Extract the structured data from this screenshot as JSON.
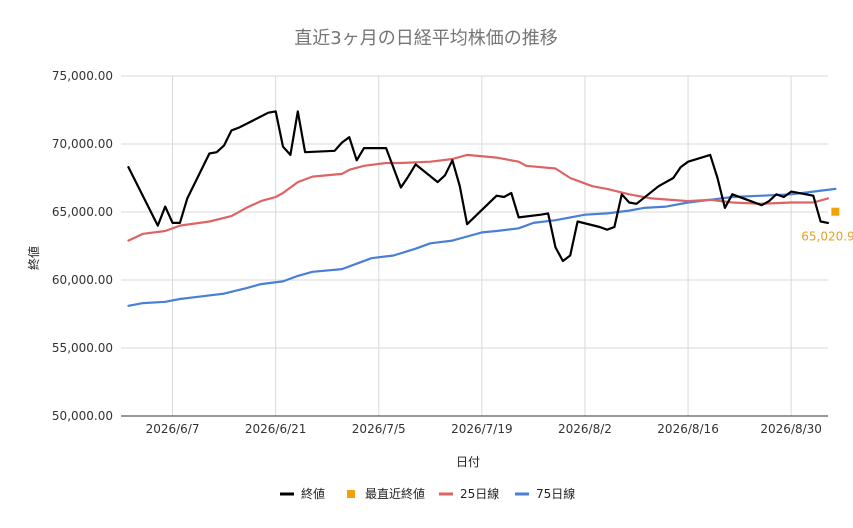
{
  "chart_data": {
    "type": "line",
    "title": "直近3ヶ月の日経平均株価の推移",
    "xlabel": "日付",
    "ylabel": "終値",
    "ylim": [
      50000,
      75000
    ],
    "y_ticks": [
      50000,
      55000,
      60000,
      65000,
      70000,
      75000
    ],
    "y_tick_labels": [
      "50,000.00",
      "55,000.00",
      "60,000.00",
      "65,000.00",
      "70,000.00",
      "75,000.00"
    ],
    "x_range": [
      "2026-05-31",
      "2026-09-04"
    ],
    "x_ticks": [
      "2026-06-07",
      "2026-06-21",
      "2026-07-05",
      "2026-07-19",
      "2026-08-02",
      "2026-08-16",
      "2026-08-30"
    ],
    "x_tick_labels": [
      "2026/6/7",
      "2026/6/21",
      "2026/7/5",
      "2026/7/19",
      "2026/8/2",
      "2026/8/16",
      "2026/8/30"
    ],
    "grid": true,
    "legend_position": "bottom",
    "latest_label": "65,020.94",
    "series": [
      {
        "name": "終値",
        "color": "#000000",
        "kind": "line",
        "points": [
          [
            "2026-06-01",
            68300
          ],
          [
            "2026-06-05",
            64000
          ],
          [
            "2026-06-06",
            65400
          ],
          [
            "2026-06-07",
            64200
          ],
          [
            "2026-06-08",
            64200
          ],
          [
            "2026-06-09",
            66000
          ],
          [
            "2026-06-12",
            69300
          ],
          [
            "2026-06-13",
            69400
          ],
          [
            "2026-06-14",
            69900
          ],
          [
            "2026-06-15",
            71000
          ],
          [
            "2026-06-16",
            71200
          ],
          [
            "2026-06-20",
            72300
          ],
          [
            "2026-06-21",
            72400
          ],
          [
            "2026-06-22",
            69800
          ],
          [
            "2026-06-23",
            69200
          ],
          [
            "2026-06-24",
            72400
          ],
          [
            "2026-06-25",
            69400
          ],
          [
            "2026-06-29",
            69500
          ],
          [
            "2026-06-30",
            70100
          ],
          [
            "2026-07-01",
            70500
          ],
          [
            "2026-07-02",
            68800
          ],
          [
            "2026-07-03",
            69700
          ],
          [
            "2026-07-06",
            69700
          ],
          [
            "2026-07-08",
            66800
          ],
          [
            "2026-07-09",
            67600
          ],
          [
            "2026-07-10",
            68500
          ],
          [
            "2026-07-13",
            67200
          ],
          [
            "2026-07-14",
            67700
          ],
          [
            "2026-07-15",
            68800
          ],
          [
            "2026-07-16",
            66900
          ],
          [
            "2026-07-17",
            64100
          ],
          [
            "2026-07-21",
            66200
          ],
          [
            "2026-07-22",
            66100
          ],
          [
            "2026-07-23",
            66400
          ],
          [
            "2026-07-24",
            64600
          ],
          [
            "2026-07-27",
            64800
          ],
          [
            "2026-07-28",
            64900
          ],
          [
            "2026-07-29",
            62400
          ],
          [
            "2026-07-30",
            61400
          ],
          [
            "2026-07-31",
            61800
          ],
          [
            "2026-08-01",
            64300
          ],
          [
            "2026-08-04",
            63900
          ],
          [
            "2026-08-05",
            63700
          ],
          [
            "2026-08-06",
            63900
          ],
          [
            "2026-08-07",
            66300
          ],
          [
            "2026-08-08",
            65700
          ],
          [
            "2026-08-09",
            65600
          ],
          [
            "2026-08-12",
            66900
          ],
          [
            "2026-08-13",
            67200
          ],
          [
            "2026-08-14",
            67500
          ],
          [
            "2026-08-15",
            68300
          ],
          [
            "2026-08-16",
            68700
          ],
          [
            "2026-08-19",
            69200
          ],
          [
            "2026-08-20",
            67500
          ],
          [
            "2026-08-21",
            65300
          ],
          [
            "2026-08-22",
            66300
          ],
          [
            "2026-08-26",
            65500
          ],
          [
            "2026-08-27",
            65800
          ],
          [
            "2026-08-28",
            66300
          ],
          [
            "2026-08-29",
            66100
          ],
          [
            "2026-08-30",
            66500
          ],
          [
            "2026-09-02",
            66200
          ],
          [
            "2026-09-03",
            64300
          ],
          [
            "2026-09-04",
            64200
          ]
        ]
      },
      {
        "name": "最直近終値",
        "color": "#f1a20b",
        "kind": "point",
        "points": [
          [
            "2026-09-05",
            65020.94
          ]
        ]
      },
      {
        "name": "25日線",
        "color": "#dd6464",
        "kind": "line",
        "points": [
          [
            "2026-06-01",
            62900
          ],
          [
            "2026-06-03",
            63400
          ],
          [
            "2026-06-06",
            63600
          ],
          [
            "2026-06-08",
            64000
          ],
          [
            "2026-06-12",
            64300
          ],
          [
            "2026-06-15",
            64700
          ],
          [
            "2026-06-17",
            65300
          ],
          [
            "2026-06-19",
            65800
          ],
          [
            "2026-06-21",
            66100
          ],
          [
            "2026-06-22",
            66400
          ],
          [
            "2026-06-24",
            67200
          ],
          [
            "2026-06-26",
            67600
          ],
          [
            "2026-06-30",
            67800
          ],
          [
            "2026-07-01",
            68100
          ],
          [
            "2026-07-03",
            68400
          ],
          [
            "2026-07-06",
            68600
          ],
          [
            "2026-07-08",
            68600
          ],
          [
            "2026-07-12",
            68700
          ],
          [
            "2026-07-15",
            68900
          ],
          [
            "2026-07-17",
            69200
          ],
          [
            "2026-07-21",
            69000
          ],
          [
            "2026-07-24",
            68700
          ],
          [
            "2026-07-25",
            68400
          ],
          [
            "2026-07-29",
            68200
          ],
          [
            "2026-07-31",
            67500
          ],
          [
            "2026-08-03",
            66900
          ],
          [
            "2026-08-05",
            66700
          ],
          [
            "2026-08-08",
            66300
          ],
          [
            "2026-08-11",
            66000
          ],
          [
            "2026-08-16",
            65800
          ],
          [
            "2026-08-19",
            65900
          ],
          [
            "2026-08-22",
            65700
          ],
          [
            "2026-08-26",
            65600
          ],
          [
            "2026-08-30",
            65700
          ],
          [
            "2026-09-02",
            65700
          ],
          [
            "2026-09-04",
            66000
          ]
        ]
      },
      {
        "name": "75日線",
        "color": "#4a7fd8",
        "kind": "line",
        "points": [
          [
            "2026-06-01",
            58100
          ],
          [
            "2026-06-03",
            58300
          ],
          [
            "2026-06-06",
            58400
          ],
          [
            "2026-06-08",
            58600
          ],
          [
            "2026-06-11",
            58800
          ],
          [
            "2026-06-14",
            59000
          ],
          [
            "2026-06-17",
            59400
          ],
          [
            "2026-06-19",
            59700
          ],
          [
            "2026-06-22",
            59900
          ],
          [
            "2026-06-24",
            60300
          ],
          [
            "2026-06-26",
            60600
          ],
          [
            "2026-06-30",
            60800
          ],
          [
            "2026-07-02",
            61200
          ],
          [
            "2026-07-04",
            61600
          ],
          [
            "2026-07-07",
            61800
          ],
          [
            "2026-07-10",
            62300
          ],
          [
            "2026-07-12",
            62700
          ],
          [
            "2026-07-15",
            62900
          ],
          [
            "2026-07-17",
            63200
          ],
          [
            "2026-07-19",
            63500
          ],
          [
            "2026-07-21",
            63600
          ],
          [
            "2026-07-24",
            63800
          ],
          [
            "2026-07-26",
            64200
          ],
          [
            "2026-07-29",
            64400
          ],
          [
            "2026-08-02",
            64800
          ],
          [
            "2026-08-05",
            64900
          ],
          [
            "2026-08-08",
            65100
          ],
          [
            "2026-08-10",
            65300
          ],
          [
            "2026-08-13",
            65400
          ],
          [
            "2026-08-16",
            65700
          ],
          [
            "2026-08-19",
            65900
          ],
          [
            "2026-08-22",
            66100
          ],
          [
            "2026-08-26",
            66200
          ],
          [
            "2026-08-30",
            66300
          ],
          [
            "2026-09-02",
            66500
          ],
          [
            "2026-09-05",
            66700
          ]
        ]
      }
    ]
  }
}
